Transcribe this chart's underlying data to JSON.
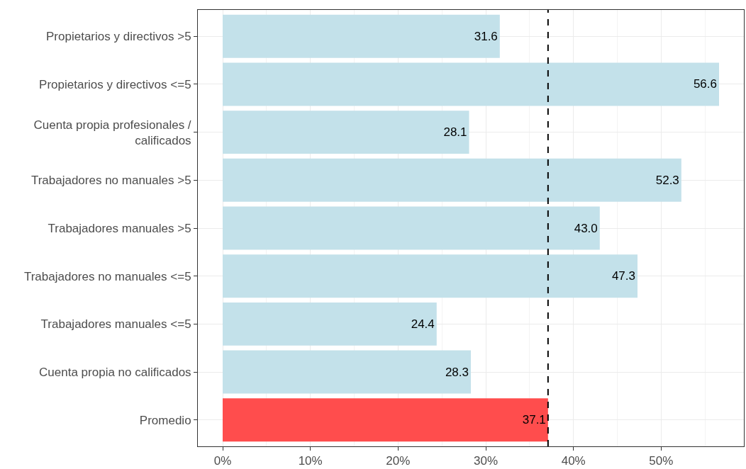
{
  "chart_data": {
    "type": "bar",
    "orientation": "horizontal",
    "categories": [
      "Propietarios y directivos >5",
      "Propietarios y directivos <=5",
      "Cuenta propia profesionales /\ncalificados",
      "Trabajadores no manuales >5",
      "Trabajadores manuales >5",
      "Trabajadores no manuales <=5",
      "Trabajadores manuales <=5",
      "Cuenta propia no calificados",
      "Promedio"
    ],
    "values": [
      31.6,
      56.6,
      28.1,
      52.3,
      43.0,
      47.3,
      24.4,
      28.3,
      37.1
    ],
    "value_labels": [
      "31.6",
      "56.6",
      "28.1",
      "52.3",
      "43.0",
      "47.3",
      "24.4",
      "28.3",
      "37.1"
    ],
    "colors": [
      "#c3e1ea",
      "#c3e1ea",
      "#c3e1ea",
      "#c3e1ea",
      "#c3e1ea",
      "#c3e1ea",
      "#c3e1ea",
      "#c3e1ea",
      "#ff4d4d"
    ],
    "xlim": [
      -2.83,
      59.43
    ],
    "xticks": [
      {
        "value": 0,
        "label": "0%"
      },
      {
        "value": 10,
        "label": "10%"
      },
      {
        "value": 20,
        "label": "20%"
      },
      {
        "value": 30,
        "label": "30%"
      },
      {
        "value": 40,
        "label": "40%"
      },
      {
        "value": 50,
        "label": "50%"
      }
    ],
    "ref_lines": [
      {
        "axis": "x",
        "value": 37.1,
        "label": null,
        "color": "#000000",
        "line_style": "dashed"
      }
    ],
    "grid": true
  }
}
